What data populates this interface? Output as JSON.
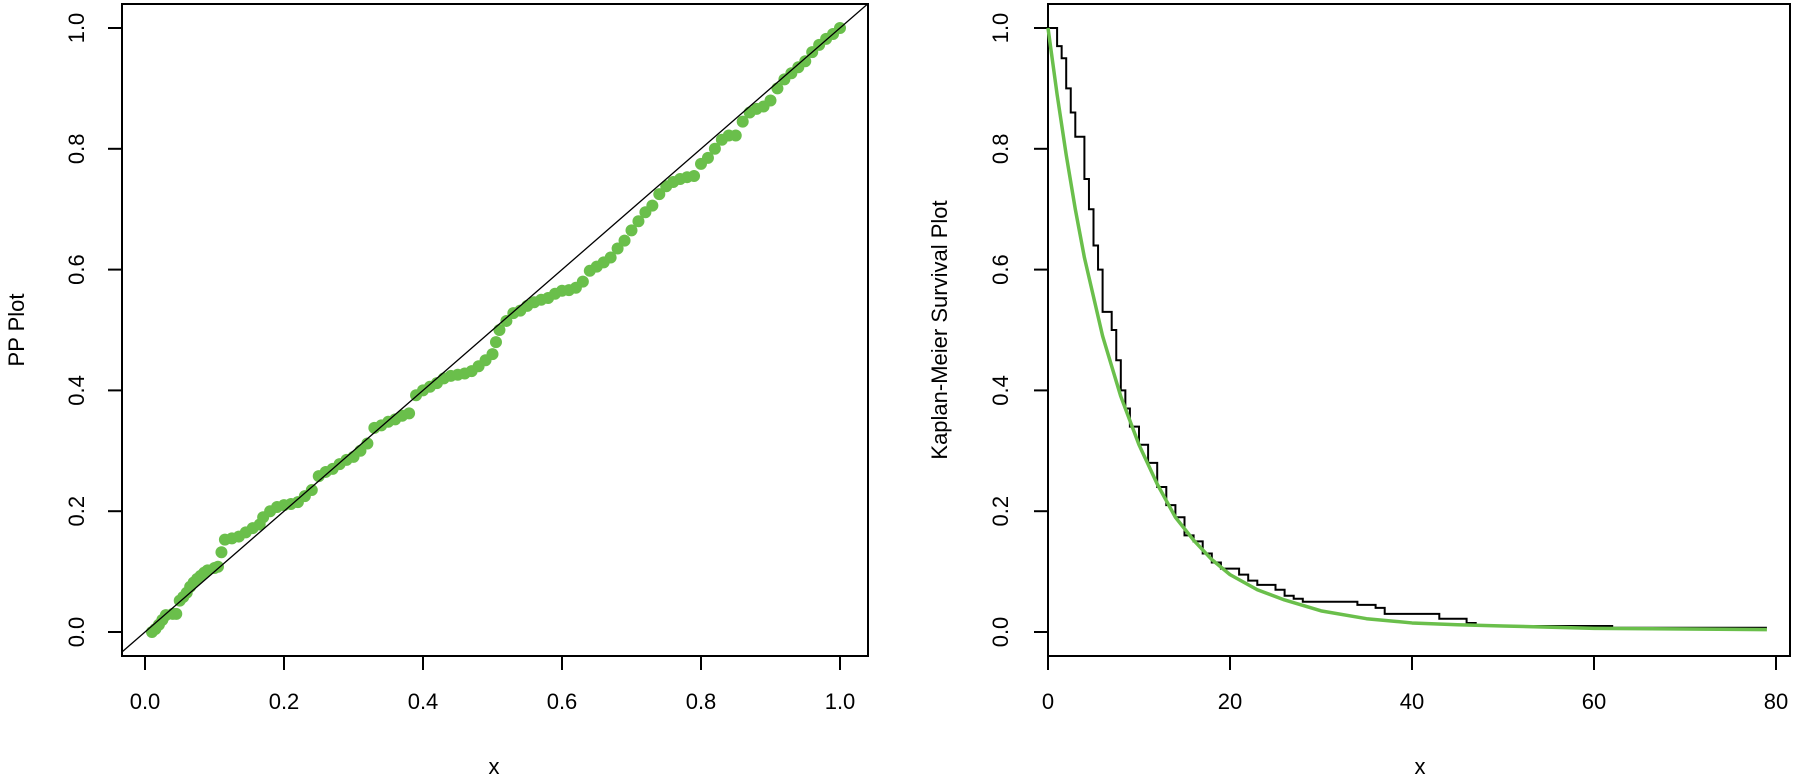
{
  "colors": {
    "fit": "#6abf4b",
    "axis": "#000000",
    "empirical": "#000000"
  },
  "chart_data": [
    {
      "type": "scatter",
      "xlabel": "x",
      "ylabel": "PP Plot",
      "xlim": [
        -0.04,
        1.04
      ],
      "ylim": [
        -0.04,
        1.04
      ],
      "xticks": [
        "0.0",
        "0.2",
        "0.4",
        "0.6",
        "0.8",
        "1.0"
      ],
      "yticks": [
        "0.0",
        "0.2",
        "0.4",
        "0.6",
        "0.8",
        "1.0"
      ],
      "reference_line": "y = x",
      "grid": false,
      "points": [
        [
          0.01,
          0.0
        ],
        [
          0.015,
          0.005
        ],
        [
          0.02,
          0.012
        ],
        [
          0.025,
          0.02
        ],
        [
          0.03,
          0.028
        ],
        [
          0.04,
          0.03
        ],
        [
          0.045,
          0.03
        ],
        [
          0.05,
          0.052
        ],
        [
          0.055,
          0.058
        ],
        [
          0.06,
          0.065
        ],
        [
          0.065,
          0.075
        ],
        [
          0.07,
          0.082
        ],
        [
          0.075,
          0.088
        ],
        [
          0.08,
          0.093
        ],
        [
          0.085,
          0.098
        ],
        [
          0.09,
          0.102
        ],
        [
          0.1,
          0.106
        ],
        [
          0.105,
          0.108
        ],
        [
          0.11,
          0.132
        ],
        [
          0.115,
          0.153
        ],
        [
          0.125,
          0.155
        ],
        [
          0.135,
          0.158
        ],
        [
          0.145,
          0.165
        ],
        [
          0.155,
          0.172
        ],
        [
          0.165,
          0.178
        ],
        [
          0.17,
          0.19
        ],
        [
          0.18,
          0.2
        ],
        [
          0.19,
          0.207
        ],
        [
          0.2,
          0.21
        ],
        [
          0.21,
          0.212
        ],
        [
          0.22,
          0.215
        ],
        [
          0.23,
          0.225
        ],
        [
          0.24,
          0.235
        ],
        [
          0.25,
          0.258
        ],
        [
          0.26,
          0.265
        ],
        [
          0.27,
          0.27
        ],
        [
          0.28,
          0.278
        ],
        [
          0.29,
          0.285
        ],
        [
          0.3,
          0.29
        ],
        [
          0.31,
          0.3
        ],
        [
          0.32,
          0.312
        ],
        [
          0.33,
          0.338
        ],
        [
          0.34,
          0.342
        ],
        [
          0.35,
          0.348
        ],
        [
          0.36,
          0.352
        ],
        [
          0.37,
          0.358
        ],
        [
          0.38,
          0.362
        ],
        [
          0.39,
          0.392
        ],
        [
          0.4,
          0.4
        ],
        [
          0.41,
          0.406
        ],
        [
          0.42,
          0.412
        ],
        [
          0.43,
          0.42
        ],
        [
          0.44,
          0.424
        ],
        [
          0.45,
          0.426
        ],
        [
          0.46,
          0.428
        ],
        [
          0.47,
          0.432
        ],
        [
          0.48,
          0.44
        ],
        [
          0.49,
          0.45
        ],
        [
          0.5,
          0.46
        ],
        [
          0.505,
          0.48
        ],
        [
          0.51,
          0.5
        ],
        [
          0.52,
          0.515
        ],
        [
          0.53,
          0.528
        ],
        [
          0.54,
          0.532
        ],
        [
          0.55,
          0.54
        ],
        [
          0.56,
          0.546
        ],
        [
          0.57,
          0.55
        ],
        [
          0.58,
          0.553
        ],
        [
          0.59,
          0.56
        ],
        [
          0.6,
          0.565
        ],
        [
          0.61,
          0.566
        ],
        [
          0.62,
          0.57
        ],
        [
          0.63,
          0.58
        ],
        [
          0.64,
          0.598
        ],
        [
          0.65,
          0.605
        ],
        [
          0.66,
          0.612
        ],
        [
          0.67,
          0.62
        ],
        [
          0.68,
          0.635
        ],
        [
          0.69,
          0.648
        ],
        [
          0.7,
          0.665
        ],
        [
          0.71,
          0.68
        ],
        [
          0.72,
          0.695
        ],
        [
          0.73,
          0.706
        ],
        [
          0.74,
          0.725
        ],
        [
          0.75,
          0.738
        ],
        [
          0.76,
          0.745
        ],
        [
          0.77,
          0.75
        ],
        [
          0.78,
          0.753
        ],
        [
          0.79,
          0.755
        ],
        [
          0.8,
          0.775
        ],
        [
          0.81,
          0.785
        ],
        [
          0.82,
          0.8
        ],
        [
          0.83,
          0.815
        ],
        [
          0.84,
          0.822
        ],
        [
          0.85,
          0.822
        ],
        [
          0.86,
          0.845
        ],
        [
          0.87,
          0.86
        ],
        [
          0.88,
          0.866
        ],
        [
          0.89,
          0.87
        ],
        [
          0.9,
          0.88
        ],
        [
          0.91,
          0.9
        ],
        [
          0.92,
          0.915
        ],
        [
          0.93,
          0.925
        ],
        [
          0.94,
          0.935
        ],
        [
          0.95,
          0.945
        ],
        [
          0.96,
          0.96
        ],
        [
          0.97,
          0.972
        ],
        [
          0.98,
          0.982
        ],
        [
          0.99,
          0.99
        ],
        [
          1.0,
          1.0
        ]
      ]
    },
    {
      "type": "line",
      "xlabel": "x",
      "ylabel": "Kaplan-Meier Survival Plot",
      "xlim": [
        0,
        82
      ],
      "ylim": [
        -0.04,
        1.04
      ],
      "xticks": [
        "0",
        "20",
        "40",
        "60",
        "80"
      ],
      "yticks": [
        "0.0",
        "0.2",
        "0.4",
        "0.6",
        "0.8",
        "1.0"
      ],
      "grid": false,
      "series": [
        {
          "style": "step",
          "color": "#000000",
          "x": [
            0,
            1,
            1.5,
            2,
            2.5,
            3,
            4,
            4.5,
            5,
            5.5,
            6,
            7,
            7.5,
            8,
            8.5,
            9,
            10,
            11,
            12,
            13,
            14,
            15,
            16,
            17,
            18,
            19,
            21,
            22,
            23,
            25,
            26,
            27,
            28,
            34,
            36,
            37,
            43,
            46,
            47,
            62,
            79
          ],
          "y": [
            1,
            0.97,
            0.95,
            0.9,
            0.86,
            0.82,
            0.75,
            0.7,
            0.64,
            0.6,
            0.53,
            0.5,
            0.45,
            0.4,
            0.37,
            0.34,
            0.31,
            0.28,
            0.24,
            0.21,
            0.19,
            0.16,
            0.15,
            0.13,
            0.115,
            0.105,
            0.095,
            0.085,
            0.078,
            0.07,
            0.06,
            0.055,
            0.05,
            0.045,
            0.04,
            0.03,
            0.022,
            0.015,
            0.01,
            0.007,
            0.007
          ]
        },
        {
          "style": "smooth",
          "color": "#6abf4b",
          "x": [
            0,
            1,
            2,
            3,
            4,
            5,
            6,
            7,
            8,
            9,
            10,
            12,
            14,
            16,
            18,
            20,
            23,
            26,
            30,
            35,
            40,
            45,
            50,
            60,
            70,
            79
          ],
          "y": [
            1,
            0.89,
            0.79,
            0.7,
            0.62,
            0.555,
            0.49,
            0.44,
            0.39,
            0.35,
            0.31,
            0.245,
            0.19,
            0.152,
            0.12,
            0.095,
            0.07,
            0.053,
            0.035,
            0.022,
            0.015,
            0.012,
            0.01,
            0.006,
            0.005,
            0.004
          ]
        }
      ]
    }
  ]
}
